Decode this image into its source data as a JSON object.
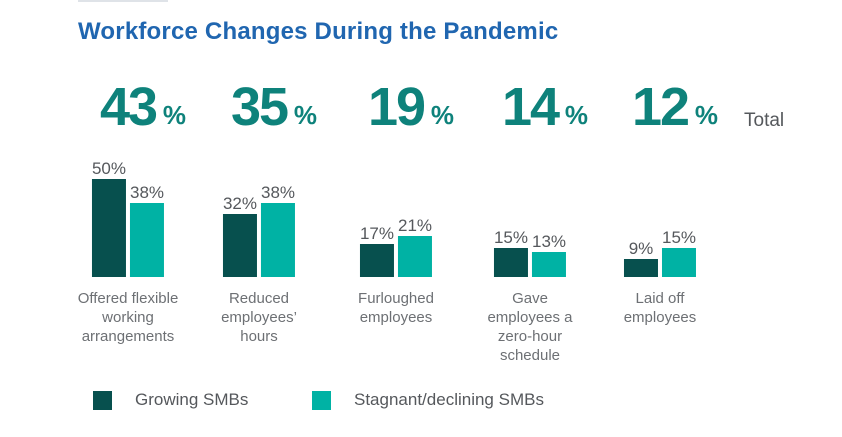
{
  "title": "Workforce Changes During the Pandemic",
  "total_label": "Total",
  "unit": "%",
  "colors": {
    "title": "#2066b0",
    "big_number": "#0e827b",
    "growing": "#07504e",
    "stagnant": "#00b2a4",
    "value_label": "#55585c",
    "category_label": "#6d7074",
    "total_word": "#55585c",
    "top_rule": "#dfe3e8"
  },
  "legend": [
    {
      "label": "Growing SMBs",
      "color": "#07504e"
    },
    {
      "label": "Stagnant/declining SMBs",
      "color": "#00b2a4"
    }
  ],
  "chart_data": {
    "type": "bar",
    "title": "Workforce Changes During the Pandemic",
    "categories": [
      "Offered flexible working arrangements",
      "Reduced employees’ hours",
      "Furloughed employees",
      "Gave employees a zero-hour schedule",
      "Laid off employees"
    ],
    "totals": [
      43,
      35,
      19,
      14,
      12
    ],
    "series": [
      {
        "name": "Growing SMBs",
        "color": "#07504e",
        "values": [
          50,
          32,
          17,
          15,
          9
        ]
      },
      {
        "name": "Stagnant/declining SMBs",
        "color": "#00b2a4",
        "values": [
          38,
          38,
          21,
          13,
          15
        ]
      }
    ],
    "unit": "%",
    "ylim": [
      0,
      55
    ],
    "grid": false,
    "axis_lines": false,
    "legend_position": "bottom"
  }
}
